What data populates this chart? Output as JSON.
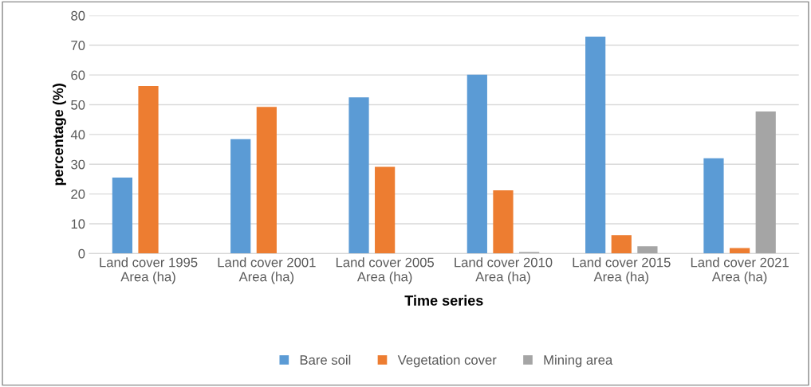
{
  "chart_data": {
    "type": "bar",
    "categories": [
      "Land cover 1995\nArea (ha)",
      "Land cover 2001\nArea (ha)",
      "Land cover 2005\nArea (ha)",
      "Land cover 2010\nArea (ha)",
      "Land cover 2015\nArea (ha)",
      "Land cover 2021\nArea (ha)"
    ],
    "series": [
      {
        "name": "Bare soil",
        "color": "#5b9bd5",
        "values": [
          25.5,
          38.4,
          52.5,
          60.1,
          72.9,
          32.0
        ]
      },
      {
        "name": "Vegetation cover",
        "color": "#ed7d31",
        "values": [
          56.3,
          49.3,
          29.1,
          21.2,
          6.2,
          1.8
        ]
      },
      {
        "name": "Mining area",
        "color": "#a5a5a5",
        "values": [
          0,
          0,
          0,
          0.5,
          2.4,
          47.7
        ]
      }
    ],
    "xlabel": "Time series",
    "ylabel": "percentage (%)",
    "ylim": [
      0,
      80
    ],
    "yticks": [
      0,
      10,
      20,
      30,
      40,
      50,
      60,
      70,
      80
    ],
    "grid": "y",
    "legend": "bottom"
  }
}
